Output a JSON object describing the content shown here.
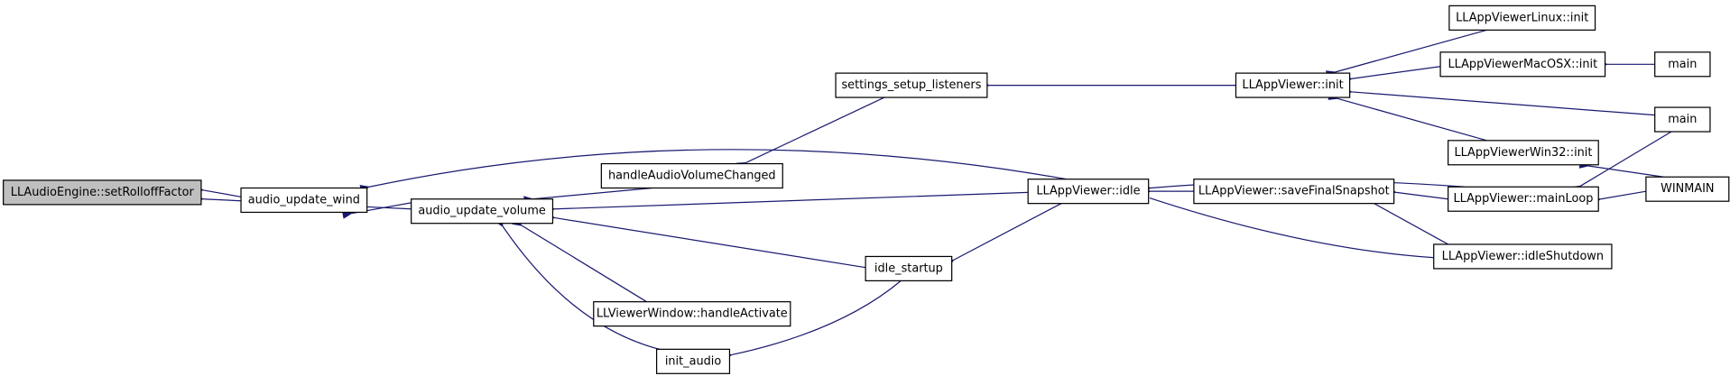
{
  "nodes": [
    {
      "label": "LLAudioEngine::setRolloffFactor"
    },
    {
      "label": "audio_update_wind"
    },
    {
      "label": "audio_update_volume"
    },
    {
      "label": "handleAudioVolumeChanged"
    },
    {
      "label": "settings_setup_listeners"
    },
    {
      "label": "LLViewerWindow::handleActivate"
    },
    {
      "label": "init_audio"
    },
    {
      "label": "idle_startup"
    },
    {
      "label": "LLAppViewer::idle"
    },
    {
      "label": "LLAppViewer::init"
    },
    {
      "label": "LLAppViewer::saveFinalSnapshot"
    },
    {
      "label": "LLAppViewerLinux::init"
    },
    {
      "label": "LLAppViewerMacOSX::init"
    },
    {
      "label": "LLAppViewerWin32::init"
    },
    {
      "label": "LLAppViewer::mainLoop"
    },
    {
      "label": "LLAppViewer::idleShutdown"
    },
    {
      "label": "main"
    },
    {
      "label": "main"
    },
    {
      "label": "WINMAIN"
    }
  ]
}
